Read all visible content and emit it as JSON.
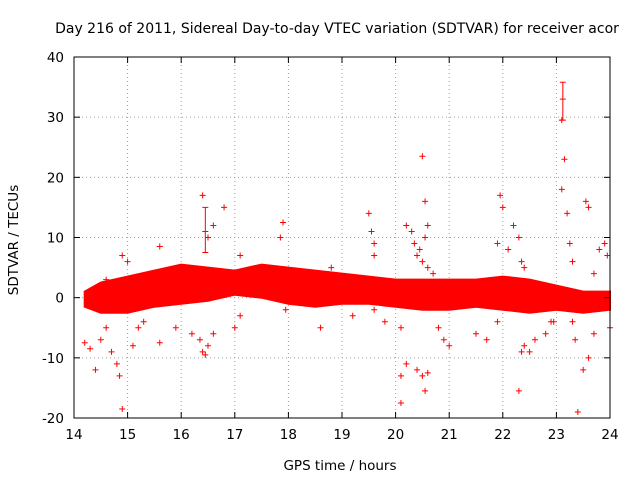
{
  "chart_data": {
    "type": "scatter",
    "title": "Day 216 of 2011, Sidereal Day-to-day VTEC variation (SDTVAR) for receiver acor",
    "xlabel": "GPS time / hours",
    "ylabel": "SDTVAR / TECUs",
    "xlim": [
      14,
      24
    ],
    "ylim": [
      -20,
      40
    ],
    "xticks": [
      14,
      15,
      16,
      17,
      18,
      19,
      20,
      21,
      22,
      23,
      24
    ],
    "yticks": [
      -20,
      -10,
      0,
      10,
      20,
      30,
      40
    ],
    "grid": true,
    "marker": "+",
    "color": "#ff0000",
    "band": {
      "x": [
        14.2,
        14.5,
        15.0,
        15.5,
        16.0,
        16.5,
        17.0,
        17.5,
        18.0,
        18.5,
        19.0,
        19.5,
        20.0,
        20.5,
        21.0,
        21.5,
        22.0,
        22.5,
        23.0,
        23.5,
        24.0
      ],
      "upper": [
        1.0,
        2.5,
        3.5,
        4.5,
        5.5,
        5.0,
        4.5,
        5.5,
        5.0,
        4.5,
        4.0,
        3.5,
        3.0,
        3.0,
        3.0,
        3.0,
        3.5,
        3.0,
        2.0,
        1.0,
        1.0
      ],
      "lower": [
        -1.5,
        -2.5,
        -2.5,
        -1.5,
        -1.0,
        -0.5,
        0.5,
        0.0,
        -1.0,
        -1.5,
        -1.0,
        -1.0,
        -1.5,
        -2.0,
        -2.0,
        -1.5,
        -2.0,
        -2.5,
        -2.0,
        -2.5,
        -2.0
      ]
    },
    "points": [
      [
        14.2,
        -7.5
      ],
      [
        14.3,
        -8.5
      ],
      [
        14.4,
        -12
      ],
      [
        14.5,
        -7
      ],
      [
        14.6,
        -5
      ],
      [
        14.7,
        -9
      ],
      [
        14.8,
        -11
      ],
      [
        14.85,
        -13
      ],
      [
        14.9,
        -18.5
      ],
      [
        14.6,
        3
      ],
      [
        14.9,
        7
      ],
      [
        15.0,
        6
      ],
      [
        15.1,
        -8
      ],
      [
        15.2,
        -5
      ],
      [
        15.3,
        -4
      ],
      [
        15.6,
        -7.5
      ],
      [
        15.6,
        8.5
      ],
      [
        15.9,
        -5
      ],
      [
        16.2,
        -6
      ],
      [
        16.35,
        -7
      ],
      [
        16.4,
        -9
      ],
      [
        16.45,
        -9.5
      ],
      [
        16.5,
        -8
      ],
      [
        16.6,
        -6
      ],
      [
        16.4,
        17
      ],
      [
        16.5,
        10
      ],
      [
        16.6,
        12
      ],
      [
        16.8,
        15
      ],
      [
        17.0,
        -5
      ],
      [
        17.1,
        -3
      ],
      [
        17.1,
        7
      ],
      [
        17.9,
        12.5
      ],
      [
        17.85,
        10
      ],
      [
        17.95,
        -2
      ],
      [
        18.6,
        -5
      ],
      [
        18.8,
        5
      ],
      [
        19.2,
        -3
      ],
      [
        19.5,
        14
      ],
      [
        19.55,
        11
      ],
      [
        19.6,
        9
      ],
      [
        19.6,
        7
      ],
      [
        19.6,
        -2
      ],
      [
        19.8,
        -4
      ],
      [
        20.1,
        -5
      ],
      [
        20.1,
        -13
      ],
      [
        20.1,
        -17.5
      ],
      [
        20.2,
        -11
      ],
      [
        20.4,
        -12
      ],
      [
        20.5,
        -13
      ],
      [
        20.55,
        -15.5
      ],
      [
        20.6,
        -12.5
      ],
      [
        20.5,
        23.5
      ],
      [
        20.55,
        16
      ],
      [
        20.6,
        12
      ],
      [
        20.55,
        10
      ],
      [
        20.2,
        12
      ],
      [
        20.3,
        11
      ],
      [
        20.35,
        9
      ],
      [
        20.4,
        7
      ],
      [
        20.45,
        8
      ],
      [
        20.5,
        6
      ],
      [
        20.6,
        5
      ],
      [
        20.7,
        4
      ],
      [
        20.8,
        -5
      ],
      [
        20.9,
        -7
      ],
      [
        21.0,
        -8
      ],
      [
        21.5,
        -6
      ],
      [
        21.7,
        -7
      ],
      [
        21.9,
        -4
      ],
      [
        21.9,
        9
      ],
      [
        21.95,
        17
      ],
      [
        22.0,
        15
      ],
      [
        22.1,
        8
      ],
      [
        22.2,
        12
      ],
      [
        22.3,
        10
      ],
      [
        22.35,
        6
      ],
      [
        22.4,
        5
      ],
      [
        22.3,
        -15.5
      ],
      [
        22.35,
        -9
      ],
      [
        22.4,
        -8
      ],
      [
        22.5,
        -9
      ],
      [
        22.6,
        -7
      ],
      [
        22.8,
        -6
      ],
      [
        22.9,
        -4
      ],
      [
        22.95,
        -4
      ],
      [
        23.1,
        29.5
      ],
      [
        23.15,
        23
      ],
      [
        23.1,
        18
      ],
      [
        23.2,
        14
      ],
      [
        23.25,
        9
      ],
      [
        23.3,
        6
      ],
      [
        23.3,
        -4
      ],
      [
        23.35,
        -7
      ],
      [
        23.4,
        -19
      ],
      [
        23.5,
        -12
      ],
      [
        23.55,
        16
      ],
      [
        23.6,
        15
      ],
      [
        23.6,
        -10
      ],
      [
        23.7,
        -6
      ],
      [
        23.8,
        8
      ],
      [
        23.9,
        9
      ],
      [
        23.95,
        7
      ],
      [
        24.0,
        -5
      ],
      [
        23.7,
        4
      ]
    ],
    "error_bars": [
      {
        "x": 16.45,
        "y": 11.0,
        "low": 7.5,
        "high": 15.0
      },
      {
        "x": 23.12,
        "y": 33.0,
        "low": 29.5,
        "high": 35.8
      }
    ]
  }
}
